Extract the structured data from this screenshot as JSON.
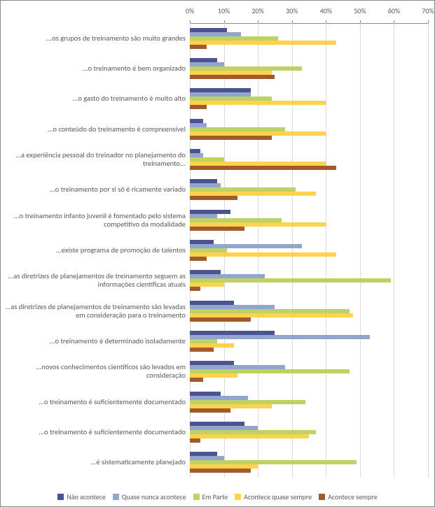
{
  "chart": {
    "type": "bar-horizontal-grouped",
    "xmin": 0,
    "xmax": 70,
    "xtick_step": 10,
    "tick_format": "percent",
    "background_color": "#ffffff",
    "grid_color": "#d9d9d9",
    "axis_color": "#888888",
    "label_fontsize": 10.5,
    "tick_fontsize": 10,
    "series": [
      {
        "name": "Não acontece",
        "color": "#4a558f"
      },
      {
        "name": "Quase  nunca acontece",
        "color": "#93a4cf"
      },
      {
        "name": "Em Parte",
        "color": "#bed163"
      },
      {
        "name": "Acontece quase sempre",
        "color": "#ffd24d"
      },
      {
        "name": "Acontece sempre",
        "color": "#a05a2c"
      }
    ],
    "categories": [
      {
        "label": "...os grupos de treinamento são muito grandes",
        "values": [
          11,
          15,
          26,
          43,
          5
        ]
      },
      {
        "label": "...o treinamento é bem organizado",
        "values": [
          8,
          10,
          33,
          24,
          25
        ]
      },
      {
        "label": "...o gasto do treinamento é muito alto",
        "values": [
          18,
          18,
          24,
          40,
          5
        ]
      },
      {
        "label": "...o conteúdo do treinamento é compreensível",
        "values": [
          4,
          5,
          28,
          40,
          24
        ]
      },
      {
        "label": "...a experiência pessoal do treinador no planejamento do treinamento...",
        "values": [
          3,
          4,
          10,
          40,
          43
        ]
      },
      {
        "label": "...o treinamento por si só é ricamente variado",
        "values": [
          8,
          9,
          31,
          37,
          14
        ]
      },
      {
        "label": "...o treinamento infanto juvenil é fomentado pelo sistema competitivo da modalidade",
        "values": [
          12,
          8,
          27,
          40,
          16
        ]
      },
      {
        "label": "...existe programa de promoção de talentos",
        "values": [
          7,
          33,
          11,
          43,
          5
        ]
      },
      {
        "label": "...as diretrizes de planejamentos de treinamento seguem as informações científicas atuais",
        "values": [
          9,
          22,
          59,
          10,
          3
        ]
      },
      {
        "label": "...as diretrizes de planejamentos de treinamento são levadas em consideração para o treinamento",
        "values": [
          13,
          25,
          47,
          48,
          18
        ]
      },
      {
        "label": "...o treinamento é determinado isoladamente",
        "values": [
          25,
          53,
          8,
          13,
          7
        ]
      },
      {
        "label": "...novos conhecimentos científicos são levados em consideração",
        "values": [
          13,
          28,
          47,
          14,
          4
        ]
      },
      {
        "label": "...o treinamento é suficientemente documentado",
        "values": [
          9,
          17,
          34,
          24,
          12
        ]
      },
      {
        "label": "...o treinamento é suficientemente documentado",
        "values": [
          16,
          20,
          37,
          35,
          3
        ]
      },
      {
        "label": "...é sistematicamente planejado",
        "values": [
          8,
          10,
          49,
          20,
          18
        ]
      }
    ],
    "legend_position": "bottom"
  },
  "ticks": [
    "0%",
    "10%",
    "20%",
    "30%",
    "40%",
    "50%",
    "60%",
    "70%"
  ]
}
